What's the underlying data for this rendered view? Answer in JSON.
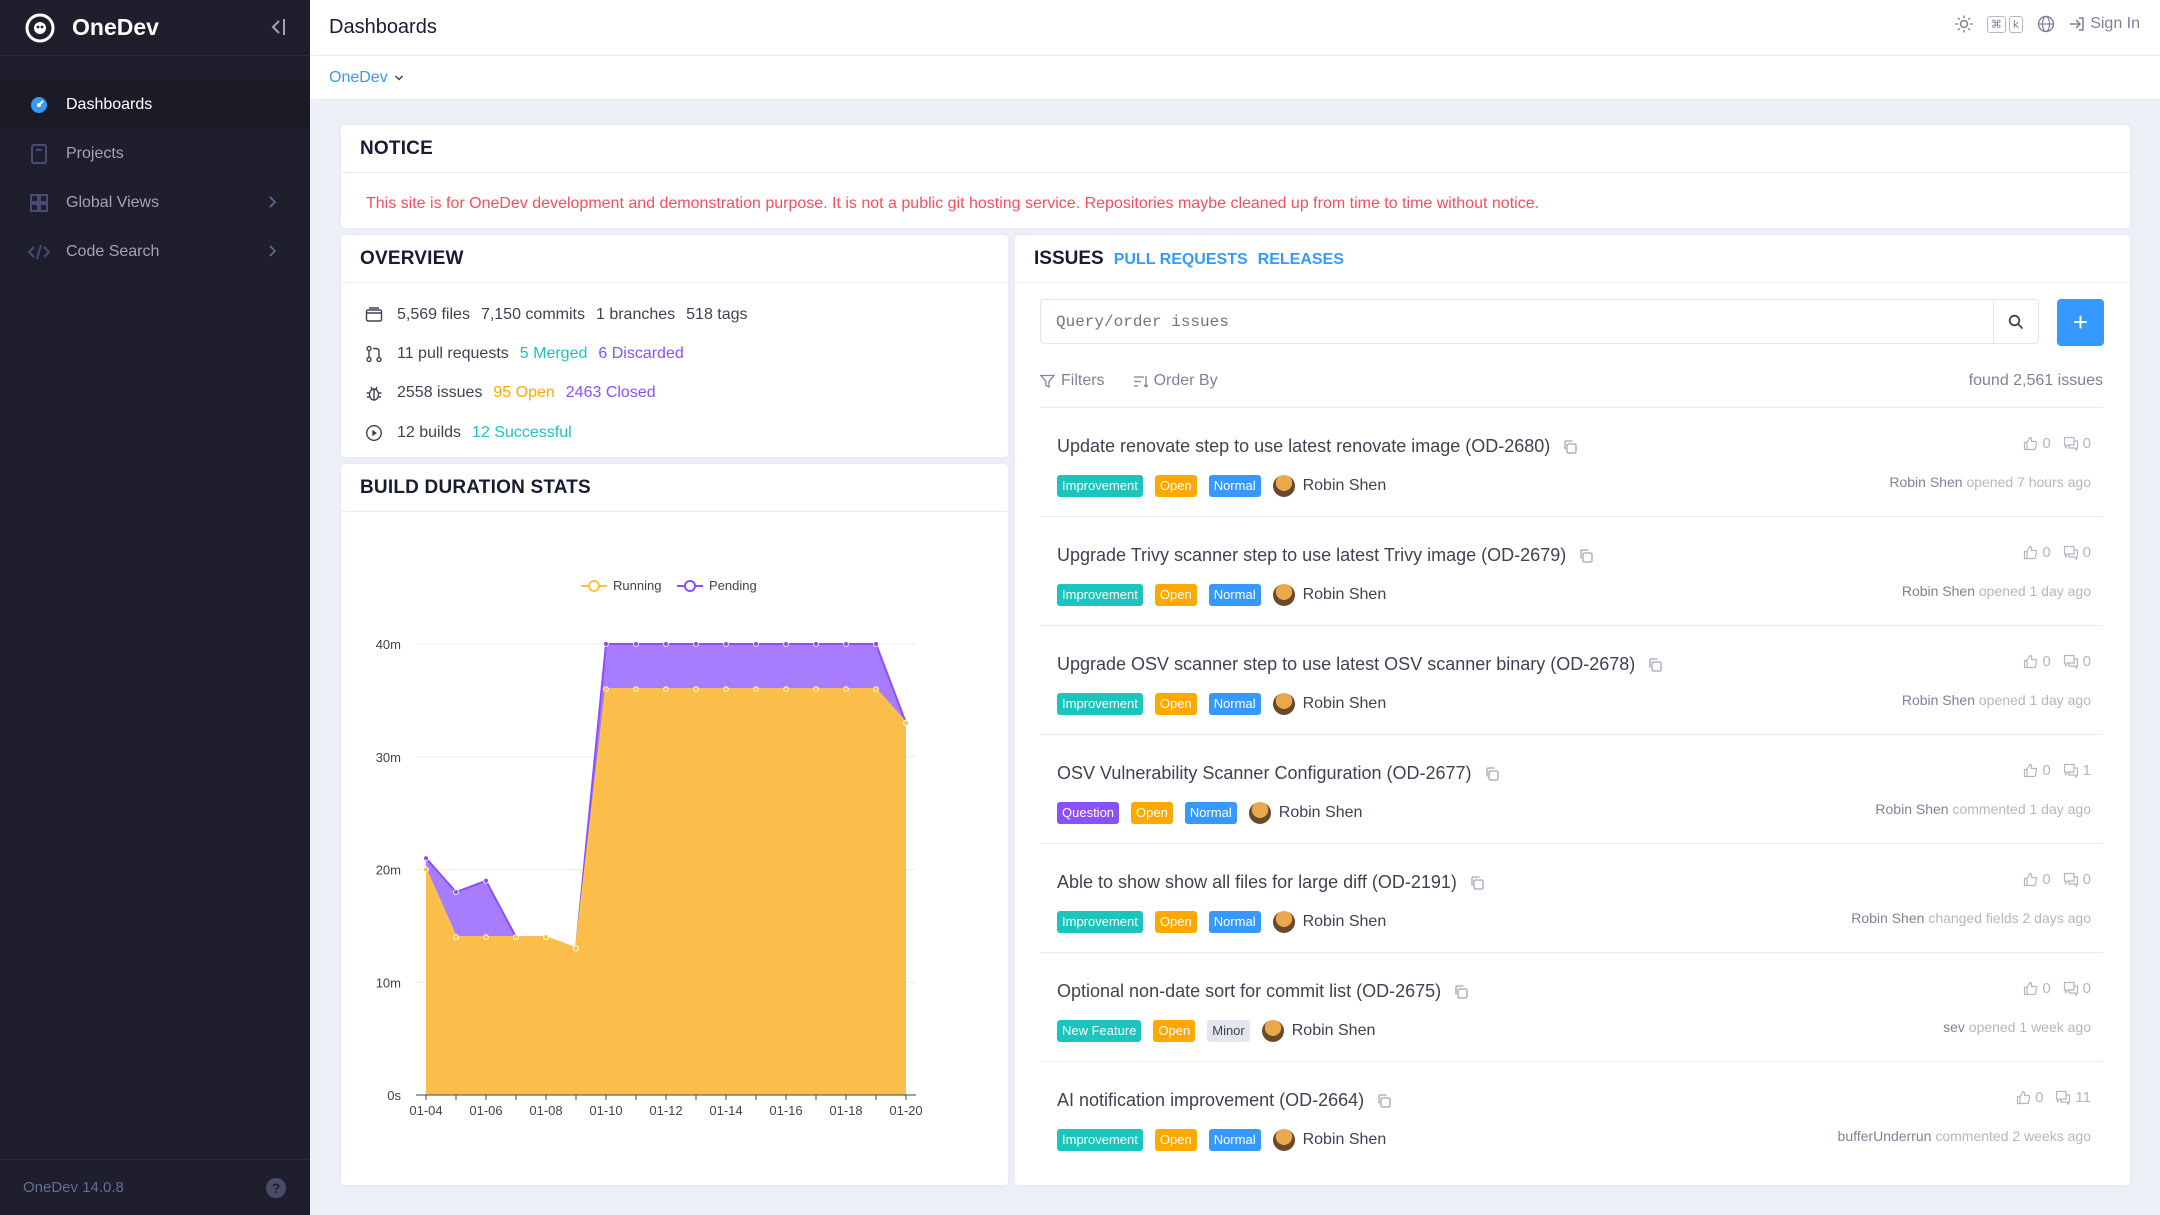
{
  "app": {
    "name": "OneDev",
    "version": "OneDev 14.0.8"
  },
  "sidebar": {
    "items": [
      {
        "label": "Dashboards",
        "active": true
      },
      {
        "label": "Projects"
      },
      {
        "label": "Global Views"
      },
      {
        "label": "Code Search"
      }
    ]
  },
  "topbar": {
    "title": "Dashboards",
    "kbd1": "⌘",
    "kbd2": "k",
    "sign_in": "Sign In"
  },
  "subbar": {
    "dashboard": "OneDev"
  },
  "notice": {
    "title": "NOTICE",
    "message": "This site is for OneDev development and demonstration purpose. It is not a public git hosting service. Repositories maybe cleaned up from time to time without notice."
  },
  "overview": {
    "title": "OVERVIEW",
    "files": "5,569 files",
    "commits": "7,150 commits",
    "branches": "1 branches",
    "tags": "518 tags",
    "pull_requests": "11 pull requests",
    "merged": "5 Merged",
    "discarded": "6 Discarded",
    "issues": "2558 issues",
    "open": "95 Open",
    "closed": "2463 Closed",
    "builds": "12 builds",
    "successful": "12 Successful"
  },
  "build_stats": {
    "title": "BUILD DURATION STATS"
  },
  "chart_data": {
    "type": "area",
    "title": "",
    "xlabel": "",
    "ylabel": "",
    "ylim": [
      0,
      40
    ],
    "yticks": [
      "0s",
      "10m",
      "20m",
      "30m",
      "40m"
    ],
    "x": [
      "01-04",
      "01-05",
      "01-06",
      "01-07",
      "01-08",
      "01-09",
      "01-10",
      "01-11",
      "01-12",
      "01-13",
      "01-14",
      "01-15",
      "01-16",
      "01-17",
      "01-18",
      "01-19",
      "01-20"
    ],
    "xtick_labels": [
      "01-04",
      "01-06",
      "01-08",
      "01-10",
      "01-12",
      "01-14",
      "01-16",
      "01-18",
      "01-20"
    ],
    "legend_position": "top-center",
    "series": [
      {
        "name": "Running",
        "color": "#ffc241",
        "values": [
          20,
          14,
          14,
          14,
          14,
          13,
          36,
          36,
          36,
          36,
          36,
          36,
          36,
          36,
          36,
          36,
          33
        ]
      },
      {
        "name": "Pending",
        "color": "#8950fc",
        "values": [
          21,
          18,
          19,
          14,
          14,
          13,
          40,
          40,
          40,
          40,
          40,
          40,
          40,
          40,
          40,
          40,
          33
        ]
      }
    ]
  },
  "issues_card": {
    "tab_issues": "ISSUES",
    "tab_prs": "PULL REQUESTS",
    "tab_releases": "RELEASES",
    "search_placeholder": "Query/order issues",
    "filters": "Filters",
    "order_by": "Order By",
    "found": "found 2,561 issues",
    "add": "+"
  },
  "issues": [
    {
      "title": "Update renovate step to use latest renovate image (OD-2680)",
      "type": "Improvement",
      "type_color": "#1bc5bd",
      "state": "Open",
      "priority": "Normal",
      "priority_color": "#3699ff",
      "assignee": "Robin Shen",
      "votes": "0",
      "comments": "0",
      "actor": "Robin Shen",
      "action": "opened 7 hours ago"
    },
    {
      "title": "Upgrade Trivy scanner step to use latest Trivy image (OD-2679)",
      "type": "Improvement",
      "type_color": "#1bc5bd",
      "state": "Open",
      "priority": "Normal",
      "priority_color": "#3699ff",
      "assignee": "Robin Shen",
      "votes": "0",
      "comments": "0",
      "actor": "Robin Shen",
      "action": "opened 1 day ago"
    },
    {
      "title": "Upgrade OSV scanner step to use latest OSV scanner binary (OD-2678)",
      "type": "Improvement",
      "type_color": "#1bc5bd",
      "state": "Open",
      "priority": "Normal",
      "priority_color": "#3699ff",
      "assignee": "Robin Shen",
      "votes": "0",
      "comments": "0",
      "actor": "Robin Shen",
      "action": "opened 1 day ago"
    },
    {
      "title": "OSV Vulnerability Scanner Configuration (OD-2677)",
      "type": "Question",
      "type_color": "#8950fc",
      "state": "Open",
      "priority": "Normal",
      "priority_color": "#3699ff",
      "assignee": "Robin Shen",
      "votes": "0",
      "comments": "1",
      "actor": "Robin Shen",
      "action": "commented 1 day ago"
    },
    {
      "title": "Able to show show all files for large diff (OD-2191)",
      "type": "Improvement",
      "type_color": "#1bc5bd",
      "state": "Open",
      "priority": "Normal",
      "priority_color": "#3699ff",
      "assignee": "Robin Shen",
      "votes": "0",
      "comments": "0",
      "actor": "Robin Shen",
      "action": "changed fields 2 days ago"
    },
    {
      "title": "Optional non-date sort for commit list (OD-2675)",
      "type": "New Feature",
      "type_color": "#1bc5bd",
      "state": "Open",
      "priority": "Minor",
      "priority_color": "#e4e6ef",
      "assignee": "Robin Shen",
      "votes": "0",
      "comments": "0",
      "actor": "sev",
      "action": "opened 1 week ago"
    },
    {
      "title": "AI notification improvement (OD-2664)",
      "type": "Improvement",
      "type_color": "#1bc5bd",
      "state": "Open",
      "priority": "Normal",
      "priority_color": "#3699ff",
      "assignee": "Robin Shen",
      "votes": "0",
      "comments": "11",
      "actor": "bufferUnderrun",
      "action": "commented 2 weeks ago"
    }
  ]
}
